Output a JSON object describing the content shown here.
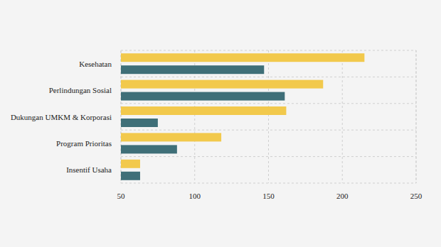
{
  "chart_data": {
    "type": "bar",
    "orientation": "horizontal",
    "categories": [
      "Kesehatan",
      "Perlindungan Sosial",
      "Dukungan UMKM & Korporasi",
      "Program Prioritas",
      "Insentif Usaha"
    ],
    "series": [
      {
        "color": "#f2c94c",
        "values": [
          215,
          187,
          162,
          118,
          63
        ]
      },
      {
        "color": "#3f6f78",
        "values": [
          147,
          161,
          75,
          88,
          63
        ]
      }
    ],
    "xlim": [
      50,
      250
    ],
    "xticks": [
      50,
      100,
      150,
      200,
      250
    ],
    "grid": true
  }
}
